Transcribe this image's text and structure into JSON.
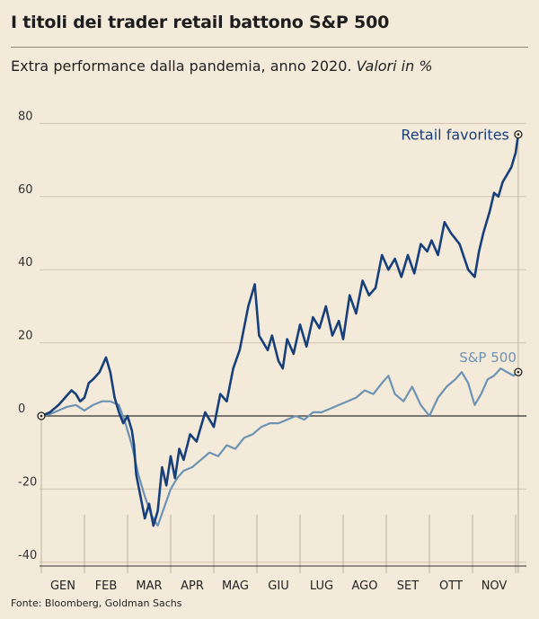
{
  "title": "I titoli dei trader retail battono S&P 500",
  "subtitle": "Extra performance dalla pandemia, anno 2020.",
  "subtitle_unit": "Valori in %",
  "source": "Fonte: Bloomberg, Goldman Sachs",
  "colors": {
    "background": "#f4ead9",
    "retail": "#173f7a",
    "sp500": "#6d93b4",
    "grid": "#cfc4b0",
    "vgrid": "#bdb3a1",
    "zero": "#333333"
  },
  "chart_data": {
    "type": "line",
    "title": "I titoli dei trader retail battono S&P 500",
    "ylabel": "Valori in %",
    "xlabel": "",
    "ylim": [
      -40,
      80
    ],
    "xlim": [
      0,
      11.4
    ],
    "yticks": [
      "80",
      "60",
      "40",
      "20",
      "0",
      "-20",
      "-40"
    ],
    "ytick_values": [
      80,
      60,
      40,
      20,
      0,
      -20,
      -40
    ],
    "months": [
      "GEN",
      "FEB",
      "MAR",
      "APR",
      "MAG",
      "GIU",
      "LUG",
      "AGO",
      "SET",
      "OTT",
      "NOV"
    ],
    "month_positions": [
      0.5,
      1.5,
      2.5,
      3.5,
      4.5,
      5.5,
      6.5,
      7.5,
      8.5,
      9.5,
      10.5
    ],
    "gridlines_x": [
      1,
      2,
      3,
      4,
      5,
      6,
      7,
      8,
      9,
      10,
      11
    ],
    "series": [
      {
        "name": "Retail favorites",
        "label": "Retail favorites",
        "x": [
          0,
          0.2,
          0.4,
          0.55,
          0.7,
          0.8,
          0.9,
          1.0,
          1.1,
          1.2,
          1.35,
          1.5,
          1.6,
          1.7,
          1.8,
          1.9,
          2.0,
          2.1,
          2.15,
          2.2,
          2.3,
          2.4,
          2.5,
          2.6,
          2.7,
          2.8,
          2.9,
          3.0,
          3.1,
          3.2,
          3.3,
          3.45,
          3.6,
          3.8,
          4.0,
          4.15,
          4.3,
          4.45,
          4.6,
          4.8,
          4.95,
          5.05,
          5.15,
          5.25,
          5.35,
          5.5,
          5.6,
          5.7,
          5.85,
          6.0,
          6.15,
          6.3,
          6.45,
          6.6,
          6.75,
          6.9,
          7.0,
          7.15,
          7.3,
          7.45,
          7.6,
          7.75,
          7.9,
          8.05,
          8.2,
          8.35,
          8.5,
          8.65,
          8.8,
          8.95,
          9.05,
          9.2,
          9.35,
          9.5,
          9.7,
          9.9,
          10.05,
          10.15,
          10.25,
          10.4,
          10.5,
          10.6,
          10.7,
          10.8,
          10.9,
          11.0,
          11.06
        ],
        "values": [
          0,
          1,
          3,
          5,
          7,
          6,
          4,
          5,
          9,
          10,
          12,
          16,
          12,
          5,
          1,
          -2,
          0,
          -4,
          -8,
          -16,
          -22,
          -28,
          -24,
          -30,
          -26,
          -14,
          -19,
          -11,
          -17,
          -9,
          -12,
          -5,
          -7,
          1,
          -3,
          6,
          4,
          13,
          18,
          30,
          36,
          22,
          20,
          18,
          22,
          15,
          13,
          21,
          17,
          25,
          19,
          27,
          24,
          30,
          22,
          26,
          21,
          33,
          28,
          37,
          33,
          35,
          44,
          40,
          43,
          38,
          44,
          39,
          47,
          45,
          48,
          44,
          53,
          50,
          47,
          40,
          38,
          45,
          50,
          56,
          61,
          60,
          64,
          66,
          68,
          72,
          77
        ],
        "end_marker": true
      },
      {
        "name": "S&P 500",
        "label": "S&P 500",
        "x": [
          0,
          0.2,
          0.4,
          0.6,
          0.8,
          1.0,
          1.2,
          1.4,
          1.6,
          1.8,
          1.95,
          2.1,
          2.25,
          2.4,
          2.55,
          2.7,
          2.85,
          3.0,
          3.15,
          3.3,
          3.5,
          3.7,
          3.9,
          4.1,
          4.3,
          4.5,
          4.7,
          4.9,
          5.1,
          5.3,
          5.5,
          5.7,
          5.9,
          6.1,
          6.3,
          6.5,
          6.7,
          6.9,
          7.1,
          7.3,
          7.5,
          7.7,
          7.9,
          8.05,
          8.2,
          8.4,
          8.6,
          8.8,
          9.0,
          9.2,
          9.4,
          9.6,
          9.75,
          9.9,
          10.05,
          10.2,
          10.35,
          10.5,
          10.65,
          10.8,
          10.95,
          11.06
        ],
        "values": [
          0,
          0.5,
          1.5,
          2.5,
          3,
          1.5,
          3,
          4,
          4,
          3,
          -2,
          -8,
          -16,
          -22,
          -27,
          -30,
          -25,
          -20,
          -17,
          -15,
          -14,
          -12,
          -10,
          -11,
          -8,
          -9,
          -6,
          -5,
          -3,
          -2,
          -2,
          -1,
          0,
          -1,
          1,
          1,
          2,
          3,
          4,
          5,
          7,
          6,
          9,
          11,
          6,
          4,
          8,
          3,
          0,
          5,
          8,
          10,
          12,
          9,
          3,
          6,
          10,
          11,
          13,
          12,
          11,
          12
        ],
        "end_marker": true
      }
    ]
  }
}
